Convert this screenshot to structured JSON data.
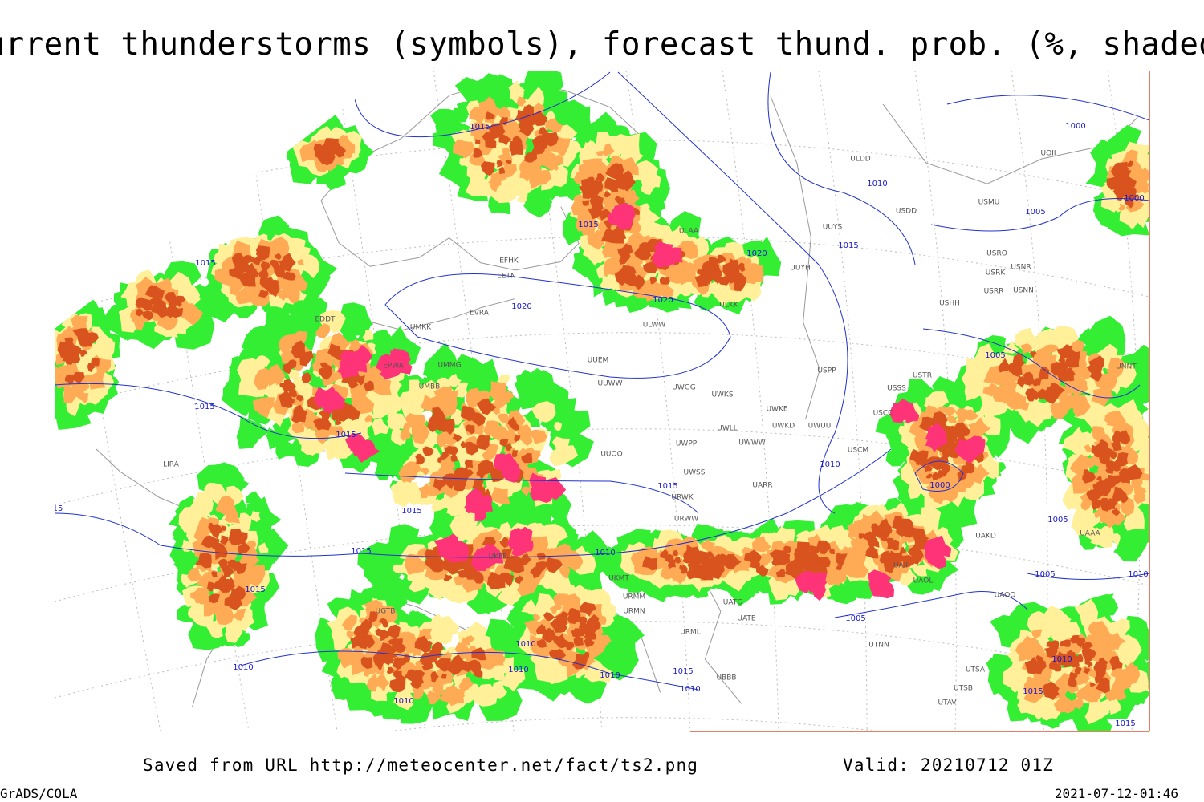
{
  "header": {
    "title": "Current thunderstorms (symbols), forecast thund. prob. (%, shaded)"
  },
  "map": {
    "isobar_labels": [
      "1015",
      "1000",
      "1010",
      "1000",
      "1005",
      "1015",
      "1020",
      "1015",
      "1015",
      "1020",
      "1020",
      "1005",
      "1015",
      "1015",
      "1010",
      "1015",
      "1000",
      "1015",
      "1005",
      "1015",
      "1010",
      "1005",
      "1010",
      "1015",
      "1005",
      "1010",
      "1010",
      "1010",
      "1010",
      "1015",
      "1010",
      "1010",
      "1010",
      "1015",
      "1015",
      "15"
    ],
    "station_labels": [
      "ULDD",
      "UOII",
      "USMU",
      "USDD",
      "UUYS",
      "ULAA",
      "USRO",
      "USRK",
      "USNR",
      "UUYH",
      "USRR",
      "USNN",
      "ULKK",
      "USHH",
      "EFHK",
      "EETN",
      "EVRA",
      "UMKK",
      "EDDT",
      "ULWW",
      "UUEM",
      "UMMG",
      "EPWA",
      "UUWW",
      "USPP",
      "USTR",
      "UNNT",
      "UWGG",
      "UWKS",
      "UMBB",
      "USSS",
      "UWKE",
      "USCC",
      "UWKD",
      "UWUU",
      "UWLL",
      "UWWW",
      "UWPP",
      "USCM",
      "UUOO",
      "UWSS",
      "UARR",
      "URWK",
      "URWW",
      "LIRA",
      "UKFF",
      "UKMT",
      "URMM",
      "URMN",
      "UGTB",
      "UATE",
      "UATG",
      "URML",
      "UAII",
      "UAOL",
      "UAAA",
      "UAKD",
      "UAOO",
      "UTNN",
      "UTSA",
      "UTSB",
      "UTAV",
      "UBBB"
    ]
  },
  "footer": {
    "source": "Saved from URL http://meteocenter.net/fact/ts2.png",
    "valid": "Valid: 20210712 01Z",
    "software": "GrADS/COLA",
    "timestamp": "2021-07-12-01:46"
  }
}
